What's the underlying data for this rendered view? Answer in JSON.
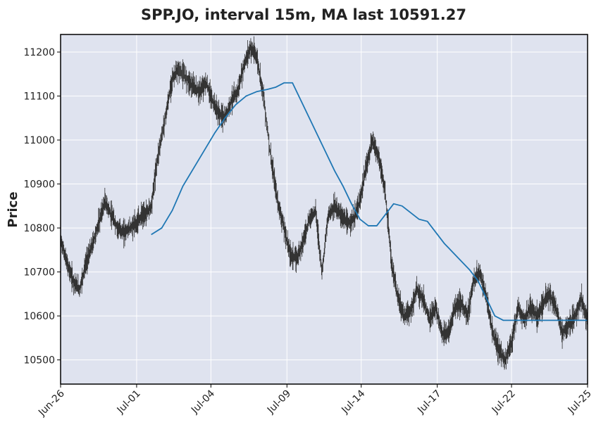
{
  "chart_data": {
    "type": "line",
    "title": "SPP.JO, interval 15m, MA last 10591.27",
    "xlabel": "",
    "ylabel": "Price",
    "ylim": [
      10445,
      11240
    ],
    "yticks": [
      10500,
      10600,
      10700,
      10800,
      10900,
      11000,
      11100,
      11200
    ],
    "xticks": [
      "Jun-26",
      "Jul-01",
      "Jul-04",
      "Jul-09",
      "Jul-14",
      "Jul-17",
      "Jul-22",
      "Jul-25"
    ],
    "grid": true,
    "colors": {
      "background": "#dfe3ef",
      "grid": "#ffffff",
      "price": "#333333",
      "ma": "#1f77b4"
    },
    "series": [
      {
        "kind": "price",
        "x": [
          0,
          0.3,
          0.6,
          0.9,
          1.2,
          1.5,
          1.8,
          2.1,
          2.4,
          2.7,
          3.0,
          3.3,
          3.6,
          3.8,
          4.0,
          4.3,
          4.6,
          5.0,
          5.3,
          5.6,
          6.0,
          6.3,
          6.6,
          6.9,
          7.2,
          7.5,
          7.8,
          8.1,
          8.4,
          8.7,
          9.0,
          9.3,
          9.6,
          10.0,
          10.3,
          10.6,
          10.9,
          11.2,
          11.5,
          11.8,
          12.1,
          12.4,
          12.7,
          13.0,
          13.3,
          13.6,
          13.9,
          14.2,
          14.5,
          14.8,
          15.1,
          15.4,
          15.7,
          16.0,
          16.3,
          16.6,
          16.9,
          17.2,
          17.5,
          17.8,
          18.1,
          18.4,
          18.7,
          19.0,
          19.3,
          19.6,
          19.9,
          20.2,
          20.5,
          20.8,
          21.1,
          21.4,
          21.7,
          22.0,
          22.3,
          22.6,
          22.9,
          23.2,
          23.5,
          23.8,
          24.1,
          24.4,
          24.7,
          25.0
        ],
        "y": [
          10775,
          10720,
          10680,
          10660,
          10720,
          10760,
          10810,
          10860,
          10830,
          10800,
          10790,
          10800,
          10810,
          10825,
          10830,
          10850,
          10960,
          11060,
          11140,
          11160,
          11140,
          11120,
          11110,
          11130,
          11090,
          11060,
          11050,
          11090,
          11110,
          11170,
          11210,
          11190,
          11110,
          10950,
          10860,
          10800,
          10740,
          10730,
          10770,
          10820,
          10840,
          10700,
          10830,
          10850,
          10830,
          10810,
          10820,
          10860,
          10940,
          11000,
          10960,
          10880,
          10720,
          10640,
          10600,
          10610,
          10660,
          10640,
          10590,
          10620,
          10560,
          10560,
          10620,
          10630,
          10600,
          10680,
          10700,
          10640,
          10560,
          10520,
          10500,
          10540,
          10620,
          10590,
          10620,
          10600,
          10630,
          10650,
          10620,
          10560,
          10580,
          10600,
          10640,
          10590
        ]
      },
      {
        "kind": "moving-average",
        "x": [
          4.3,
          4.8,
          5.3,
          5.8,
          6.3,
          6.8,
          7.3,
          7.8,
          8.3,
          8.8,
          9.3,
          9.8,
          10.2,
          10.6,
          11.0,
          11.4,
          11.8,
          12.2,
          12.6,
          13.0,
          13.4,
          13.8,
          14.2,
          14.6,
          15.0,
          15.4,
          15.8,
          16.2,
          16.6,
          17.0,
          17.4,
          17.8,
          18.2,
          18.6,
          19.0,
          19.4,
          19.8,
          20.2,
          20.6,
          21.0,
          21.4,
          21.8,
          22.2,
          22.6,
          23.0,
          23.4,
          23.8,
          24.2,
          24.6,
          25.0
        ],
        "y": [
          10785,
          10800,
          10840,
          10895,
          10935,
          10975,
          11015,
          11050,
          11080,
          11100,
          11110,
          11115,
          11120,
          11130,
          11130,
          11090,
          11050,
          11010,
          10970,
          10930,
          10895,
          10855,
          10820,
          10805,
          10805,
          10830,
          10855,
          10850,
          10835,
          10820,
          10815,
          10790,
          10765,
          10745,
          10725,
          10705,
          10680,
          10640,
          10600,
          10590,
          10590,
          10590,
          10590,
          10590,
          10590,
          10590,
          10590,
          10590,
          10590,
          10590
        ]
      }
    ]
  }
}
